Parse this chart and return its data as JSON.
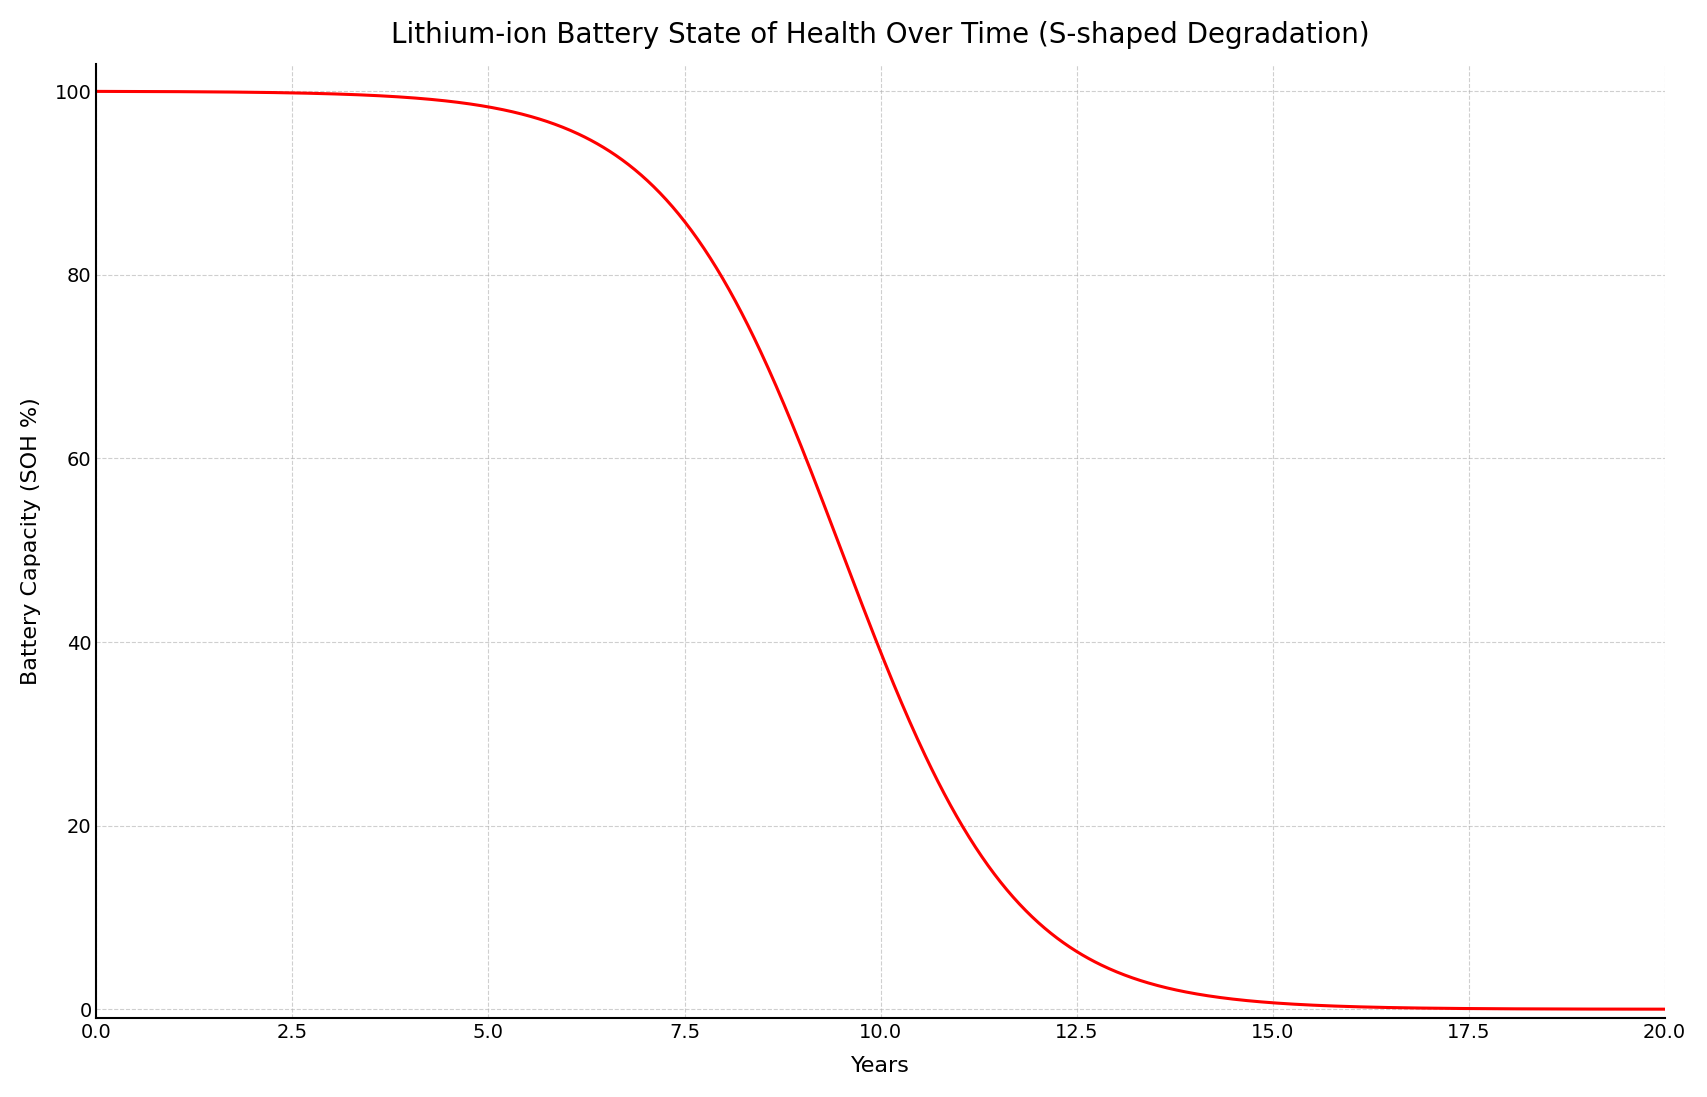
{
  "title": "Lithium-ion Battery State of Health Over Time (S-shaped Degradation)",
  "xlabel": "Years",
  "ylabel": "Battery Capacity (SOH %)",
  "x_start": 0,
  "x_end": 20,
  "num_points": 1000,
  "sigmoid_midpoint": 9.5,
  "sigmoid_steepness": 0.9,
  "soh_max": 100,
  "line_color": "#ff0000",
  "line_width": 2.2,
  "background_color": "#ffffff",
  "grid_color": "#b0b0b0",
  "grid_style": "--",
  "grid_alpha": 0.6,
  "xlim": [
    0.0,
    20.0
  ],
  "ylim": [
    -1,
    103
  ],
  "xticks": [
    0.0,
    2.5,
    5.0,
    7.5,
    10.0,
    12.5,
    15.0,
    17.5,
    20.0
  ],
  "yticks": [
    0,
    20,
    40,
    60,
    80,
    100
  ],
  "title_fontsize": 20,
  "axis_label_fontsize": 16,
  "tick_fontsize": 14,
  "spine_visible": [
    "bottom",
    "left"
  ]
}
